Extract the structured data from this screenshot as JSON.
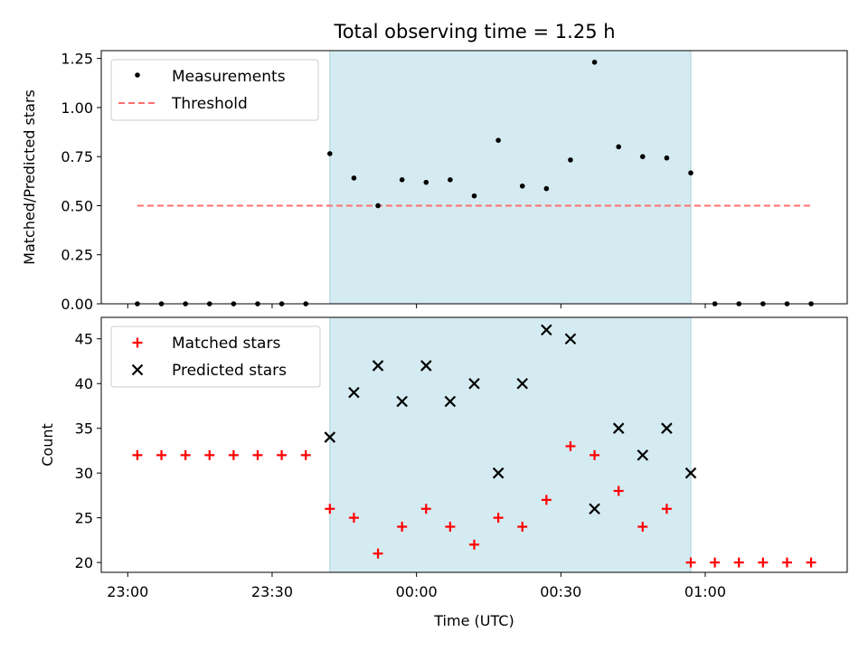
{
  "chart_data": {
    "title": "Total observing time = 1.25 h",
    "xlabel": "Time (UTC)",
    "x_ticks": [
      "23:00",
      "23:30",
      "00:00",
      "00:30",
      "01:00"
    ],
    "x_tick_minutes": [
      0,
      30,
      60,
      90,
      120
    ],
    "xlim_minutes": [
      -5.5,
      149.5
    ],
    "observing_window_minutes": [
      42,
      117
    ],
    "window_color": "#d4ebf1",
    "panels": [
      {
        "type": "scatter",
        "ylabel": "Matched/Predicted stars",
        "ylim": [
          0,
          1.29
        ],
        "y_ticks": [
          "0.00",
          "0.25",
          "0.50",
          "0.75",
          "1.00",
          "1.25"
        ],
        "y_tick_values": [
          0,
          0.25,
          0.5,
          0.75,
          1.0,
          1.25
        ],
        "legend_position": "top-left",
        "series": [
          {
            "name": "Measurements",
            "marker": "dot",
            "color": "#000000",
            "x": [
              2,
              7,
              12,
              17,
              22,
              27,
              32,
              37,
              42,
              47,
              52,
              57,
              62,
              67,
              72,
              77,
              82,
              87,
              92,
              97,
              102,
              107,
              112,
              117,
              122,
              127,
              132,
              137,
              142
            ],
            "y": [
              0,
              0,
              0,
              0,
              0,
              0,
              0,
              0,
              0.765,
              0.641,
              0.5,
              0.632,
              0.619,
              0.632,
              0.55,
              0.833,
              0.6,
              0.587,
              0.733,
              1.231,
              0.8,
              0.75,
              0.743,
              0.667,
              0,
              0,
              0,
              0,
              0
            ]
          }
        ],
        "threshold": {
          "name": "Threshold",
          "value": 0.5,
          "x_range": [
            2,
            142
          ],
          "color": "#ff6f6f"
        }
      },
      {
        "type": "scatter",
        "ylabel": "Count",
        "ylim": [
          18.9,
          47.4
        ],
        "y_ticks": [
          "20",
          "25",
          "30",
          "35",
          "40",
          "45"
        ],
        "y_tick_values": [
          20,
          25,
          30,
          35,
          40,
          45
        ],
        "legend_position": "top-left",
        "series": [
          {
            "name": "Matched stars",
            "marker": "plus",
            "color": "#ff0000",
            "x": [
              2,
              7,
              12,
              17,
              22,
              27,
              32,
              37,
              42,
              47,
              52,
              57,
              62,
              67,
              72,
              77,
              82,
              87,
              92,
              97,
              102,
              107,
              112,
              117,
              122,
              127,
              132,
              137,
              142
            ],
            "y": [
              32,
              32,
              32,
              32,
              32,
              32,
              32,
              32,
              26,
              25,
              21,
              24,
              26,
              24,
              22,
              25,
              24,
              27,
              33,
              32,
              28,
              24,
              26,
              20,
              20,
              20,
              20,
              20,
              20
            ]
          },
          {
            "name": "Predicted stars",
            "marker": "x",
            "color": "#000000",
            "x": [
              42,
              47,
              52,
              57,
              62,
              67,
              72,
              77,
              82,
              87,
              92,
              97,
              102,
              107,
              112,
              117
            ],
            "y": [
              34,
              39,
              42,
              38,
              42,
              38,
              40,
              30,
              40,
              46,
              45,
              26,
              35,
              32,
              35,
              30
            ]
          }
        ]
      }
    ]
  }
}
